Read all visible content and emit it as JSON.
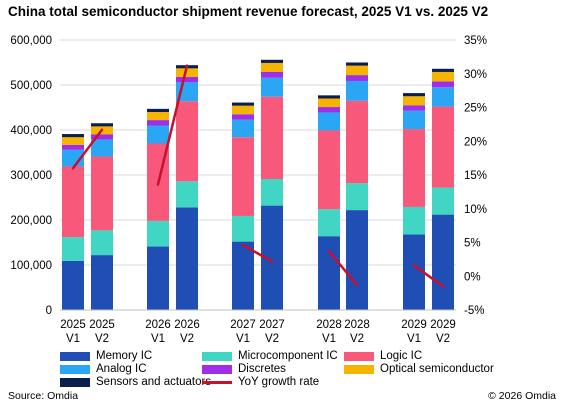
{
  "chart_data": {
    "type": "bar",
    "title": "China total semiconductor shipment revenue forecast, 2025 V1 vs. 2025 V2",
    "categories": [
      {
        "year": "2025",
        "version": "V1"
      },
      {
        "year": "2025",
        "version": "V2"
      },
      {
        "year": "2026",
        "version": "V1"
      },
      {
        "year": "2026",
        "version": "V2"
      },
      {
        "year": "2027",
        "version": "V1"
      },
      {
        "year": "2027",
        "version": "V2"
      },
      {
        "year": "2028",
        "version": "V1"
      },
      {
        "year": "2028",
        "version": "V2"
      },
      {
        "year": "2029",
        "version": "V1"
      },
      {
        "year": "2029",
        "version": "V2"
      }
    ],
    "stacked": true,
    "series": [
      {
        "name": "Memory IC",
        "color": "#1f4fb4",
        "values": [
          109000,
          122000,
          141000,
          228000,
          152000,
          232000,
          164000,
          222000,
          168000,
          212000
        ]
      },
      {
        "name": "Microcomponent IC",
        "color": "#41d6c3",
        "values": [
          53000,
          55000,
          57000,
          58000,
          57000,
          59000,
          60000,
          60000,
          61000,
          60000
        ]
      },
      {
        "name": "Logic IC",
        "color": "#f8587a",
        "values": [
          157000,
          164000,
          172000,
          178000,
          175000,
          183000,
          175000,
          183000,
          173000,
          180000
        ]
      },
      {
        "name": "Analog IC",
        "color": "#2aa6f5",
        "values": [
          37000,
          38000,
          40000,
          42000,
          39000,
          42000,
          40000,
          44000,
          41000,
          43000
        ]
      },
      {
        "name": "Discretes",
        "color": "#a02de8",
        "values": [
          11000,
          11000,
          12000,
          12000,
          12000,
          13000,
          12000,
          13000,
          12000,
          13000
        ]
      },
      {
        "name": "Optical semiconductor",
        "color": "#f4b400",
        "values": [
          17000,
          18000,
          18000,
          19000,
          19000,
          20000,
          19000,
          21000,
          20000,
          21000
        ]
      },
      {
        "name": "Sensors and actuators",
        "color": "#0c1e4e",
        "values": [
          7000,
          7000,
          7000,
          7000,
          7000,
          7000,
          7000,
          7000,
          7000,
          7000
        ]
      }
    ],
    "line_series": {
      "name": "YoY growth rate",
      "color": "#c8102e",
      "axis": "right",
      "segments": [
        {
          "from": 0,
          "to": 1,
          "values": [
            16.0,
            21.7
          ]
        },
        {
          "from": 2,
          "to": 3,
          "values": [
            13.6,
            31.2
          ]
        },
        {
          "from": 4,
          "to": 5,
          "values": [
            4.6,
            2.2
          ]
        },
        {
          "from": 6,
          "to": 7,
          "values": [
            3.7,
            -1.3
          ]
        },
        {
          "from": 8,
          "to": 9,
          "values": [
            1.6,
            -1.5
          ]
        }
      ]
    },
    "y_left": {
      "min": 0,
      "max": 600000,
      "step": 100000,
      "ticks": [
        "0",
        "100,000",
        "200,000",
        "300,000",
        "400,000",
        "500,000",
        "600,000"
      ]
    },
    "y_right": {
      "min": -5,
      "max": 35,
      "step": 5,
      "ticks": [
        "-5%",
        "0%",
        "5%",
        "10%",
        "15%",
        "20%",
        "25%",
        "30%",
        "35%"
      ]
    },
    "grid": true,
    "legend_position": "bottom"
  },
  "legend": {
    "memory": "Memory IC",
    "micro": "Microcomponent IC",
    "logic": "Logic IC",
    "analog": "Analog IC",
    "discretes": "Discretes",
    "optical": "Optical semiconductor",
    "sensors": "Sensors and actuators",
    "yoy": "YoY growth rate"
  },
  "footer": {
    "source": "Source: Omdia",
    "copyright": "© 2026 Omdia"
  }
}
